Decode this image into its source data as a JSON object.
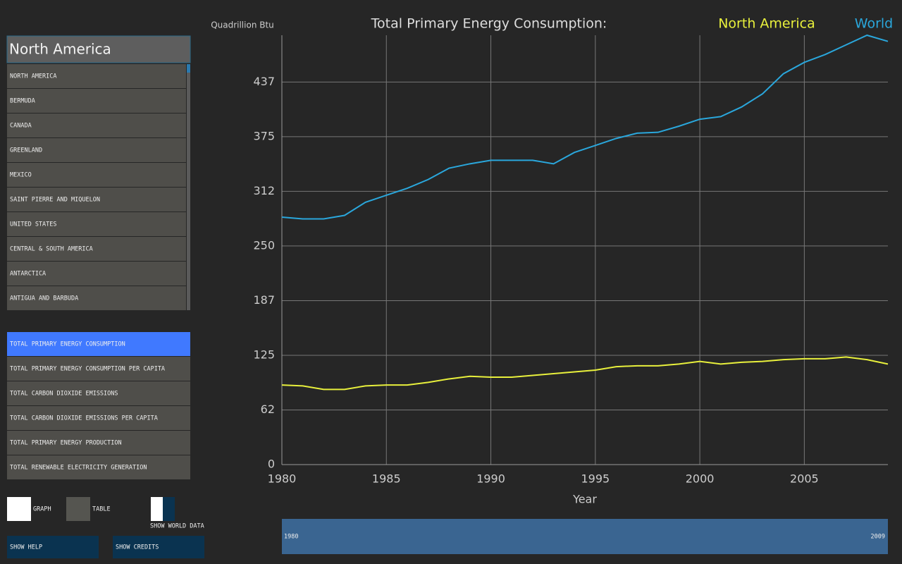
{
  "search": {
    "value": "North America"
  },
  "countries": [
    "NORTH AMERICA",
    "BERMUDA",
    "CANADA",
    "GREENLAND",
    "MEXICO",
    "SAINT PIERRE AND MIQUELON",
    "UNITED STATES",
    "CENTRAL & SOUTH AMERICA",
    "ANTARCTICA",
    "ANTIGUA AND BARBUDA"
  ],
  "metrics": {
    "items": [
      "TOTAL PRIMARY ENERGY CONSUMPTION",
      "TOTAL PRIMARY ENERGY CONSUMPTION PER CAPITA",
      "TOTAL CARBON DIOXIDE EMISSIONS",
      "TOTAL CARBON DIOXIDE EMISSIONS PER CAPITA",
      "TOTAL PRIMARY ENERGY PRODUCTION",
      "TOTAL RENEWABLE ELECTRICITY GENERATION"
    ],
    "selected": 0,
    "selected_color": "#4079ff"
  },
  "buttons": {
    "graph": "GRAPH",
    "table": "TABLE",
    "world": "SHOW WORLD DATA",
    "help": "SHOW HELP",
    "credits": "SHOW CREDITS"
  },
  "slider": {
    "start": "1980",
    "end": "2009"
  },
  "chart_data": {
    "type": "line",
    "title": "Total Primary Energy Consumption:",
    "y_label": "Quadrillion Btu",
    "x_label": "Year",
    "x": [
      1980,
      1981,
      1982,
      1983,
      1984,
      1985,
      1986,
      1987,
      1988,
      1989,
      1990,
      1991,
      1992,
      1993,
      1994,
      1995,
      1996,
      1997,
      1998,
      1999,
      2000,
      2001,
      2002,
      2003,
      2004,
      2005,
      2006,
      2007,
      2008,
      2009
    ],
    "xlim": [
      1980,
      2009
    ],
    "xticks": [
      1980,
      1985,
      1990,
      1995,
      2000,
      2005
    ],
    "ylim": [
      0,
      491
    ],
    "yticks": [
      0,
      {
        "value": 62.5,
        "label": "62"
      },
      125,
      {
        "value": 187.5,
        "label": "187"
      },
      250,
      {
        "value": 312.5,
        "label": "312"
      },
      375,
      {
        "value": 437.5,
        "label": "437"
      }
    ],
    "grid": true,
    "series": [
      {
        "name": "North America",
        "color": "#e8f03c",
        "values": [
          91,
          90,
          86,
          86,
          90,
          91,
          91,
          94,
          98,
          101,
          100,
          100,
          102,
          104,
          106,
          108,
          112,
          113,
          113,
          115,
          118,
          115,
          117,
          118,
          120,
          121,
          121,
          123,
          120,
          115
        ]
      },
      {
        "name": "World",
        "color": "#2aa7dc",
        "values": [
          283,
          281,
          281,
          285,
          300,
          308,
          316,
          326,
          339,
          344,
          348,
          348,
          348,
          344,
          357,
          365,
          373,
          379,
          380,
          387,
          395,
          398,
          409,
          424,
          447,
          460,
          469,
          480,
          491,
          484
        ]
      }
    ]
  }
}
